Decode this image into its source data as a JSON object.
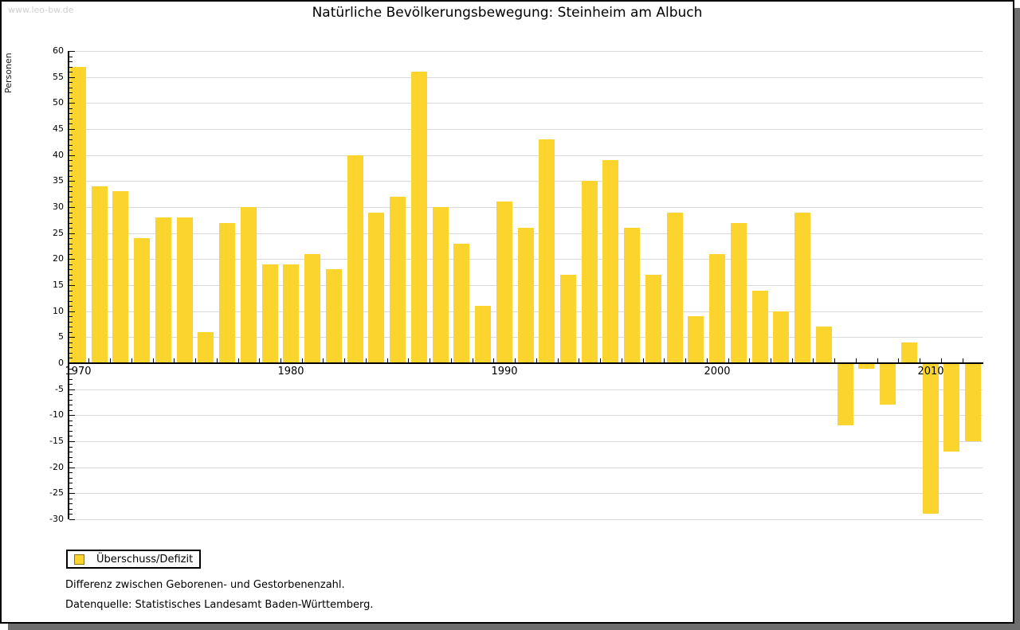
{
  "watermark": "www.leo-bw.de",
  "title": "Natürliche Bevölkerungsbewegung: Steinheim am Albuch",
  "legend": {
    "label": "Überschuss/Defizit"
  },
  "footnotes": {
    "line1": "Differenz zwischen Geborenen- und Gestorbenenzahl.",
    "line2": "Datenquelle: Statistisches Landesamt Baden-Württemberg."
  },
  "colors": {
    "bar": "#FBD42D",
    "bar_border": "#8B7500",
    "grid": "#D9D9D9",
    "axis": "#000000",
    "watermark": "#CFCFCF",
    "shadow": "#6E6E6E",
    "text": "#000000"
  },
  "chart_data": {
    "type": "bar",
    "title": "Natürliche Bevölkerungsbewegung: Steinheim am Albuch",
    "xlabel": "",
    "ylabel": "Personen",
    "ylim": [
      -30,
      60
    ],
    "ytick_step": 5,
    "grid": true,
    "legend_position": "bottom-left",
    "x_tick_labels": [
      "1970",
      "1980",
      "1990",
      "2000",
      "2010"
    ],
    "categories": [
      1970,
      1971,
      1972,
      1973,
      1974,
      1975,
      1976,
      1977,
      1978,
      1979,
      1980,
      1981,
      1982,
      1983,
      1984,
      1985,
      1986,
      1987,
      1988,
      1989,
      1990,
      1991,
      1992,
      1993,
      1994,
      1995,
      1996,
      1997,
      1998,
      1999,
      2000,
      2001,
      2002,
      2003,
      2004,
      2005,
      2006,
      2007,
      2008,
      2009,
      2010,
      2011,
      2012
    ],
    "series": [
      {
        "name": "Überschuss/Defizit",
        "values": [
          57,
          34,
          33,
          24,
          28,
          28,
          6,
          27,
          30,
          19,
          19,
          21,
          18,
          40,
          29,
          32,
          56,
          30,
          23,
          11,
          31,
          26,
          43,
          17,
          35,
          39,
          26,
          17,
          29,
          9,
          21,
          27,
          14,
          10,
          29,
          7,
          -12,
          -1,
          -8,
          4,
          -29,
          -17,
          -15
        ]
      }
    ]
  }
}
